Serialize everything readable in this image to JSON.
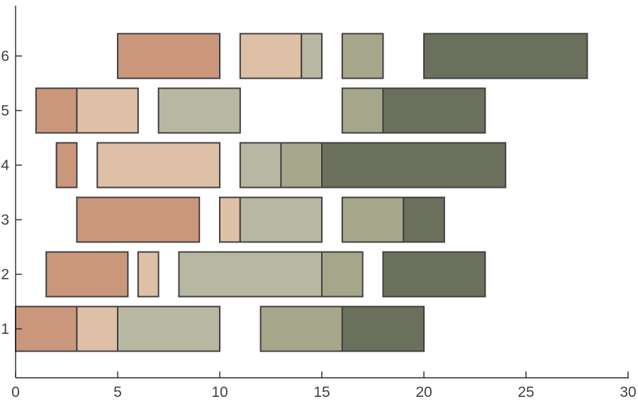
{
  "page": {
    "background": "#ffffff"
  },
  "chart_data": {
    "type": "bar",
    "subtype": "horizontal-interval-gantt",
    "title": "",
    "xlabel": "",
    "ylabel": "",
    "xlim": [
      0,
      30
    ],
    "x_ticks": [
      0,
      5,
      10,
      15,
      20,
      25,
      30
    ],
    "y_categories": [
      "1",
      "2",
      "3",
      "4",
      "5",
      "6"
    ],
    "grid": false,
    "legend": "none",
    "bar_height_units": 0.82,
    "palette": {
      "terracotta": "#ca977d",
      "blush": "#dec0a7",
      "light-sage": "#b8b7a2",
      "medium-sage": "#a6a78a",
      "dark-olive": "#6b705c",
      "edge": "#3f3f3f",
      "axis": "#262626",
      "tick_label": "#3f3f3f"
    },
    "series_order": [
      "terracotta",
      "blush",
      "light-sage",
      "medium-sage",
      "dark-olive"
    ],
    "rows": [
      {
        "y": 1,
        "segments": [
          {
            "color": "terracotta",
            "start": 0,
            "end": 3
          },
          {
            "color": "blush",
            "start": 3,
            "end": 5
          },
          {
            "color": "light-sage",
            "start": 5,
            "end": 10
          },
          {
            "color": "medium-sage",
            "start": 12,
            "end": 16
          },
          {
            "color": "dark-olive",
            "start": 16,
            "end": 20
          }
        ]
      },
      {
        "y": 2,
        "segments": [
          {
            "color": "terracotta",
            "start": 1.5,
            "end": 5.5
          },
          {
            "color": "blush",
            "start": 6,
            "end": 7
          },
          {
            "color": "light-sage",
            "start": 8,
            "end": 15
          },
          {
            "color": "medium-sage",
            "start": 15,
            "end": 17
          },
          {
            "color": "dark-olive",
            "start": 18,
            "end": 23
          }
        ]
      },
      {
        "y": 3,
        "segments": [
          {
            "color": "terracotta",
            "start": 3,
            "end": 9
          },
          {
            "color": "blush",
            "start": 10,
            "end": 11
          },
          {
            "color": "light-sage",
            "start": 11,
            "end": 15
          },
          {
            "color": "medium-sage",
            "start": 16,
            "end": 19
          },
          {
            "color": "dark-olive",
            "start": 19,
            "end": 21
          }
        ]
      },
      {
        "y": 4,
        "segments": [
          {
            "color": "terracotta",
            "start": 2,
            "end": 3
          },
          {
            "color": "blush",
            "start": 4,
            "end": 10
          },
          {
            "color": "light-sage",
            "start": 11,
            "end": 13
          },
          {
            "color": "medium-sage",
            "start": 13,
            "end": 15
          },
          {
            "color": "dark-olive",
            "start": 15,
            "end": 24
          }
        ]
      },
      {
        "y": 5,
        "segments": [
          {
            "color": "terracotta",
            "start": 1,
            "end": 3
          },
          {
            "color": "blush",
            "start": 3,
            "end": 6
          },
          {
            "color": "light-sage",
            "start": 7,
            "end": 11
          },
          {
            "color": "medium-sage",
            "start": 16,
            "end": 18
          },
          {
            "color": "dark-olive",
            "start": 18,
            "end": 23
          }
        ]
      },
      {
        "y": 6,
        "segments": [
          {
            "color": "terracotta",
            "start": 5,
            "end": 10
          },
          {
            "color": "blush",
            "start": 11,
            "end": 14
          },
          {
            "color": "light-sage",
            "start": 14,
            "end": 15
          },
          {
            "color": "medium-sage",
            "start": 16,
            "end": 18
          },
          {
            "color": "dark-olive",
            "start": 20,
            "end": 28
          }
        ]
      }
    ]
  }
}
